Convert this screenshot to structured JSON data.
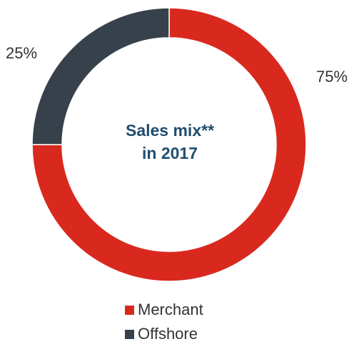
{
  "chart_data": {
    "type": "pie",
    "title": "Sales mix** in 2017",
    "title_lines": [
      "Sales mix**",
      "in 2017"
    ],
    "categories": [
      "Merchant",
      "Offshore"
    ],
    "values": [
      75,
      25
    ],
    "labels": [
      "75%",
      "25%"
    ],
    "colors": [
      "#d9291f",
      "#36414b"
    ],
    "legend_position": "bottom",
    "donut": true
  }
}
